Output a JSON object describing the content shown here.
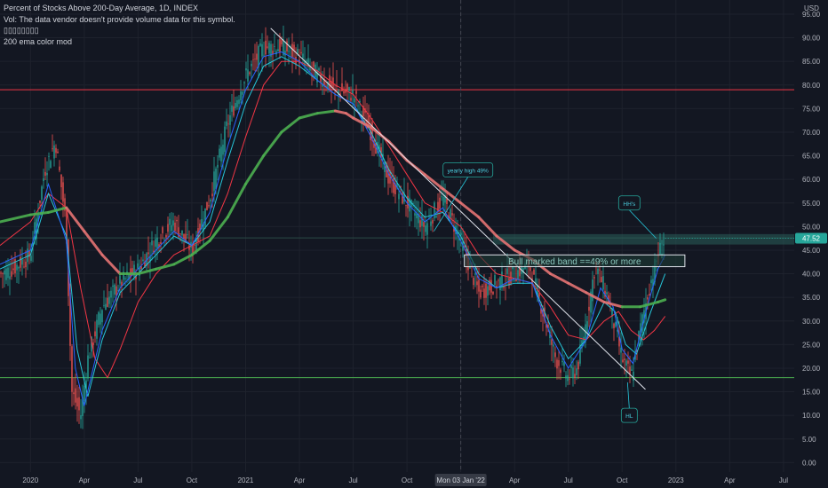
{
  "legend": {
    "title": "Percent of Stocks Above 200-Day Average, 1D, INDEX",
    "vol": "Vol: The data vendor doesn't provide volume data for this symbol.",
    "glyphs": "▯▯▯▯▯▯▯▯",
    "indicator": "200 ema color mod"
  },
  "currency": "USD",
  "colors": {
    "background": "#131722",
    "grid": "#1e222d",
    "up_candle": "#26a69a",
    "down_candle": "#ef5350",
    "ema_fast": "#2962ff",
    "ema_mid": "#26c6da",
    "ema_slow": "#f23645",
    "ema200_up": "#4caf50",
    "ema200_down": "#e57373",
    "horizontal_red": "#f23645",
    "horizontal_green": "#4caf50",
    "band": "#2a5e5a",
    "price_label": "#26a69a"
  },
  "chart_data": {
    "type": "line",
    "title": "Percent of Stocks Above 200-Day Average, 1D, INDEX",
    "ylim": [
      -2,
      98
    ],
    "y_ticks": [
      "0.00",
      "5.00",
      "10.00",
      "15.00",
      "20.00",
      "25.00",
      "30.00",
      "35.00",
      "40.00",
      "45.00",
      "50.00",
      "55.00",
      "60.00",
      "65.00",
      "70.00",
      "75.00",
      "80.00",
      "85.00",
      "90.00",
      "95.00"
    ],
    "x_ticks": [
      "2020",
      "Apr",
      "Jul",
      "Oct",
      "2021",
      "Apr",
      "Jul",
      "Oct",
      "Mon 03 Jan '22",
      "Apr",
      "Jul",
      "Oct",
      "2023",
      "Apr",
      "Jul"
    ],
    "x_tick_months": [
      0,
      3,
      6,
      9,
      12,
      15,
      18,
      21,
      24,
      27,
      30,
      33,
      36,
      39,
      42
    ],
    "crosshair_month": 24,
    "last_value": "47.52",
    "last_value_num": 47.52,
    "series": [
      {
        "name": "Price",
        "points": [
          [
            -1.7,
            40
          ],
          [
            -1,
            41
          ],
          [
            0,
            44
          ],
          [
            0.8,
            62
          ],
          [
            1.4,
            68
          ],
          [
            2,
            50
          ],
          [
            2.3,
            15
          ],
          [
            2.8,
            10
          ],
          [
            3.2,
            22
          ],
          [
            4,
            33
          ],
          [
            5,
            38
          ],
          [
            6,
            41
          ],
          [
            7,
            47
          ],
          [
            8,
            51
          ],
          [
            9,
            45
          ],
          [
            10,
            56
          ],
          [
            11,
            72
          ],
          [
            12,
            82
          ],
          [
            13,
            88
          ],
          [
            14,
            88
          ],
          [
            15,
            86
          ],
          [
            16,
            82
          ],
          [
            17,
            79
          ],
          [
            18,
            78
          ],
          [
            19,
            70
          ],
          [
            20,
            60
          ],
          [
            21,
            55
          ],
          [
            22,
            50
          ],
          [
            23,
            56
          ],
          [
            24,
            47
          ],
          [
            25,
            36
          ],
          [
            26,
            38
          ],
          [
            27,
            40
          ],
          [
            27.8,
            42
          ],
          [
            28.5,
            33
          ],
          [
            29.3,
            22
          ],
          [
            30,
            18
          ],
          [
            30.5,
            20
          ],
          [
            31,
            30
          ],
          [
            31.5,
            42
          ],
          [
            32.2,
            35
          ],
          [
            33,
            22
          ],
          [
            33.5,
            18
          ],
          [
            34,
            28
          ],
          [
            34.5,
            37
          ],
          [
            35,
            44
          ],
          [
            35.4,
            47.5
          ]
        ]
      },
      {
        "name": "EMA fast",
        "points": [
          [
            -1.7,
            42
          ],
          [
            0,
            45
          ],
          [
            1,
            59
          ],
          [
            2,
            47
          ],
          [
            2.5,
            20
          ],
          [
            3,
            12
          ],
          [
            4,
            28
          ],
          [
            5,
            37
          ],
          [
            6,
            41
          ],
          [
            7,
            45
          ],
          [
            8,
            49
          ],
          [
            9,
            46
          ],
          [
            10,
            53
          ],
          [
            11,
            67
          ],
          [
            12,
            79
          ],
          [
            13,
            86
          ],
          [
            14,
            87
          ],
          [
            15,
            85
          ],
          [
            16,
            81
          ],
          [
            17,
            78
          ],
          [
            18,
            76
          ],
          [
            19,
            69
          ],
          [
            20,
            61
          ],
          [
            21,
            55
          ],
          [
            22,
            51
          ],
          [
            23,
            54
          ],
          [
            24,
            47
          ],
          [
            25,
            39
          ],
          [
            26,
            37
          ],
          [
            27,
            39
          ],
          [
            28,
            38
          ],
          [
            29,
            27
          ],
          [
            30,
            20
          ],
          [
            31,
            26
          ],
          [
            31.8,
            37
          ],
          [
            32.5,
            33
          ],
          [
            33,
            24
          ],
          [
            33.6,
            21
          ],
          [
            34.4,
            33
          ],
          [
            35,
            41
          ],
          [
            35.4,
            44
          ]
        ]
      },
      {
        "name": "EMA mid",
        "points": [
          [
            -1.7,
            41
          ],
          [
            0,
            44
          ],
          [
            1,
            57
          ],
          [
            2,
            48
          ],
          [
            2.6,
            24
          ],
          [
            3.2,
            14
          ],
          [
            4,
            26
          ],
          [
            5,
            36
          ],
          [
            6,
            40
          ],
          [
            7,
            44
          ],
          [
            8,
            48
          ],
          [
            9,
            46
          ],
          [
            10,
            51
          ],
          [
            11,
            64
          ],
          [
            12,
            76
          ],
          [
            13,
            84
          ],
          [
            14,
            86
          ],
          [
            15,
            84
          ],
          [
            16,
            81
          ],
          [
            17,
            78
          ],
          [
            18,
            76
          ],
          [
            19,
            70
          ],
          [
            20,
            62
          ],
          [
            21,
            56
          ],
          [
            22,
            52
          ],
          [
            23,
            53
          ],
          [
            24,
            48
          ],
          [
            25,
            40
          ],
          [
            26,
            37
          ],
          [
            27,
            38
          ],
          [
            28,
            38
          ],
          [
            29,
            29
          ],
          [
            30,
            22
          ],
          [
            31,
            26
          ],
          [
            32,
            34
          ],
          [
            32.6,
            32
          ],
          [
            33.2,
            25
          ],
          [
            33.8,
            23
          ],
          [
            34.6,
            32
          ],
          [
            35.4,
            40
          ]
        ]
      },
      {
        "name": "EMA slow",
        "points": [
          [
            -1.7,
            46
          ],
          [
            0,
            51
          ],
          [
            1,
            57
          ],
          [
            2,
            54
          ],
          [
            2.8,
            37
          ],
          [
            3.6,
            22
          ],
          [
            4.3,
            18
          ],
          [
            5,
            24
          ],
          [
            6,
            34
          ],
          [
            7,
            40
          ],
          [
            8,
            44
          ],
          [
            9,
            46
          ],
          [
            10,
            48
          ],
          [
            11,
            57
          ],
          [
            12,
            69
          ],
          [
            13,
            80
          ],
          [
            14,
            85
          ],
          [
            15,
            85
          ],
          [
            16,
            83
          ],
          [
            17,
            80
          ],
          [
            18,
            78
          ],
          [
            19,
            73
          ],
          [
            20,
            67
          ],
          [
            21,
            61
          ],
          [
            22,
            55
          ],
          [
            23,
            53
          ],
          [
            24,
            50
          ],
          [
            25,
            44
          ],
          [
            26,
            40
          ],
          [
            27,
            39
          ],
          [
            28,
            38
          ],
          [
            29,
            33
          ],
          [
            30,
            27
          ],
          [
            31,
            26
          ],
          [
            32,
            30
          ],
          [
            32.8,
            32
          ],
          [
            33.5,
            28
          ],
          [
            34.2,
            26
          ],
          [
            34.8,
            28
          ],
          [
            35.4,
            31
          ]
        ]
      },
      {
        "name": "200 EMA",
        "points": [
          [
            -1.7,
            51
          ],
          [
            0,
            52.5
          ],
          [
            1,
            53
          ],
          [
            2,
            54
          ],
          [
            3,
            49
          ],
          [
            4,
            44
          ],
          [
            5,
            40
          ],
          [
            6,
            40
          ],
          [
            7,
            41
          ],
          [
            8,
            42
          ],
          [
            9,
            44
          ],
          [
            10,
            47
          ],
          [
            11,
            52
          ],
          [
            12,
            59
          ],
          [
            13,
            65
          ],
          [
            14,
            70
          ],
          [
            15,
            73
          ],
          [
            16,
            74
          ],
          [
            17,
            74.5
          ],
          [
            17.6,
            74
          ],
          [
            18,
            73
          ],
          [
            19,
            71
          ],
          [
            20,
            68
          ],
          [
            21,
            64
          ],
          [
            22,
            61
          ],
          [
            23,
            58
          ],
          [
            24,
            55
          ],
          [
            25,
            52
          ],
          [
            26,
            48
          ],
          [
            27,
            45
          ],
          [
            28,
            43
          ],
          [
            29,
            40
          ],
          [
            30,
            38
          ],
          [
            31,
            36
          ],
          [
            32,
            34
          ],
          [
            33,
            33
          ],
          [
            34,
            33
          ],
          [
            35,
            34
          ],
          [
            35.4,
            34.5
          ]
        ]
      }
    ],
    "horizontal_levels": [
      79,
      47.6,
      18
    ],
    "trendline": [
      [
        13.4,
        92
      ],
      [
        34.3,
        15.5
      ]
    ],
    "band": [
      44,
      41.5
    ],
    "annotations": [
      {
        "label": "yearly high 49%",
        "box": [
          24.4,
          62
        ],
        "point": [
          22.5,
          49
        ]
      },
      {
        "label": "HH's",
        "box": [
          33.4,
          55
        ],
        "point": [
          34.9,
          47.5
        ]
      },
      {
        "label": "HL",
        "box": [
          33.4,
          10
        ],
        "point": [
          33.3,
          17
        ]
      },
      {
        "label": "Bull marked band ==49% or more",
        "box": [
          29.8,
          43
        ]
      }
    ]
  }
}
